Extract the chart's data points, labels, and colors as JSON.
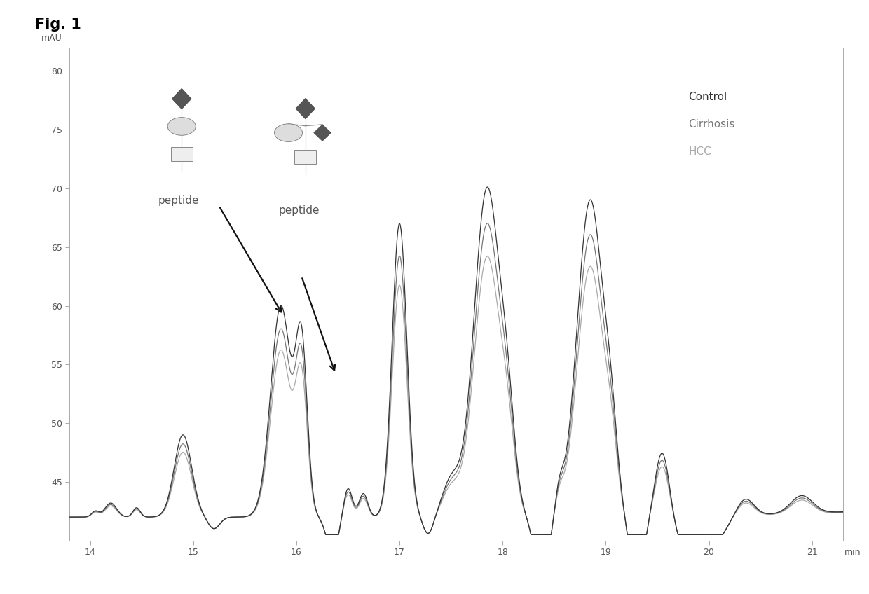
{
  "title": "Fig. 1",
  "xlabel": "min",
  "ylabel": "mAU",
  "xlim": [
    13.8,
    21.3
  ],
  "ylim": [
    40,
    82
  ],
  "yticks": [
    45,
    50,
    55,
    60,
    65,
    70,
    75,
    80
  ],
  "xticks": [
    14,
    15,
    16,
    17,
    18,
    19,
    20,
    21
  ],
  "legend_labels": [
    "Control",
    "Cirrhosis",
    "HCC"
  ],
  "line_colors": [
    "#333333",
    "#777777",
    "#aaaaaa"
  ],
  "background_color": "#ffffff",
  "figure_bg": "#ffffff"
}
